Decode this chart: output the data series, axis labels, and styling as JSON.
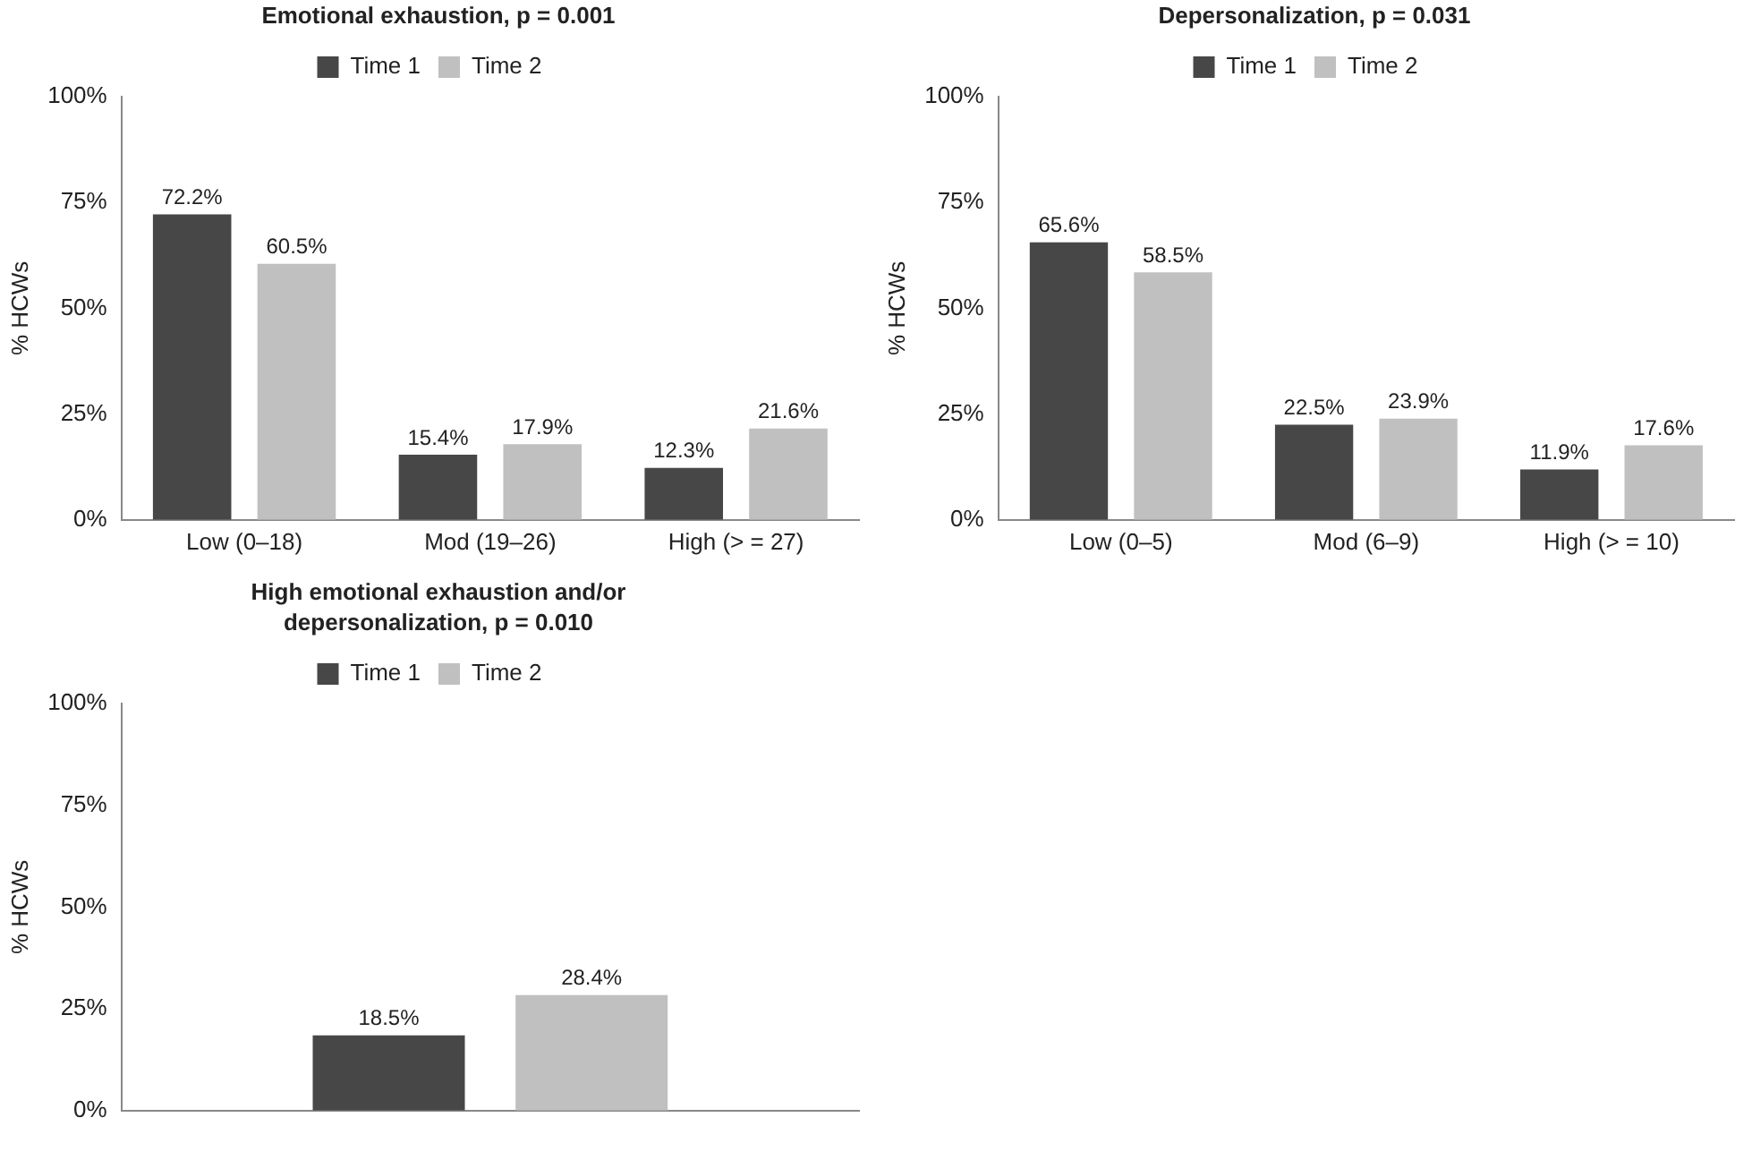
{
  "chart_data": [
    {
      "type": "bar",
      "title": "Emotional exhaustion, p = 0.001",
      "ylabel": "% HCWs",
      "categories": [
        "Low (0–18)",
        "Mod (19–26)",
        "High (> = 27)"
      ],
      "series": [
        {
          "name": "Time 1",
          "color": "#474747",
          "values": [
            72.2,
            15.4,
            12.3
          ],
          "value_labels": [
            "72.2%",
            "15.4%",
            "12.3%"
          ]
        },
        {
          "name": "Time 2",
          "color": "#c0c0c0",
          "values": [
            60.5,
            17.9,
            21.6
          ],
          "value_labels": [
            "60.5%",
            "17.9%",
            "21.6%"
          ]
        }
      ],
      "ylim": [
        0,
        100
      ],
      "yticks": [
        {
          "value": 0,
          "label": "0%"
        },
        {
          "value": 25,
          "label": "25%"
        },
        {
          "value": 50,
          "label": "50%"
        },
        {
          "value": 75,
          "label": "75%"
        },
        {
          "value": 100,
          "label": "100%"
        }
      ],
      "grid": false,
      "legend": "top"
    },
    {
      "type": "bar",
      "title": "Depersonalization, p = 0.031",
      "ylabel": "% HCWs",
      "categories": [
        "Low (0–5)",
        "Mod (6–9)",
        "High (> = 10)"
      ],
      "series": [
        {
          "name": "Time 1",
          "color": "#474747",
          "values": [
            65.6,
            22.5,
            11.9
          ],
          "value_labels": [
            "65.6%",
            "22.5%",
            "11.9%"
          ]
        },
        {
          "name": "Time 2",
          "color": "#c0c0c0",
          "values": [
            58.5,
            23.9,
            17.6
          ],
          "value_labels": [
            "58.5%",
            "23.9%",
            "17.6%"
          ]
        }
      ],
      "ylim": [
        0,
        100
      ],
      "yticks": [
        {
          "value": 0,
          "label": "0%"
        },
        {
          "value": 25,
          "label": "25%"
        },
        {
          "value": 50,
          "label": "50%"
        },
        {
          "value": 75,
          "label": "75%"
        },
        {
          "value": 100,
          "label": "100%"
        }
      ],
      "grid": false,
      "legend": "top"
    },
    {
      "type": "bar",
      "title": "High emotional exhaustion and/or depersonalization, p = 0.010",
      "ylabel": "% HCWs",
      "categories": [
        null
      ],
      "series": [
        {
          "name": "Time 1",
          "color": "#474747",
          "values": [
            18.5
          ],
          "value_labels": [
            "18.5%"
          ]
        },
        {
          "name": "Time 2",
          "color": "#c0c0c0",
          "values": [
            28.4
          ],
          "value_labels": [
            "28.4%"
          ]
        }
      ],
      "ylim": [
        0,
        100
      ],
      "yticks": [
        {
          "value": 0,
          "label": "0%"
        },
        {
          "value": 25,
          "label": "25%"
        },
        {
          "value": 50,
          "label": "50%"
        },
        {
          "value": 75,
          "label": "75%"
        },
        {
          "value": 100,
          "label": "100%"
        }
      ],
      "grid": false,
      "legend": "top"
    }
  ]
}
